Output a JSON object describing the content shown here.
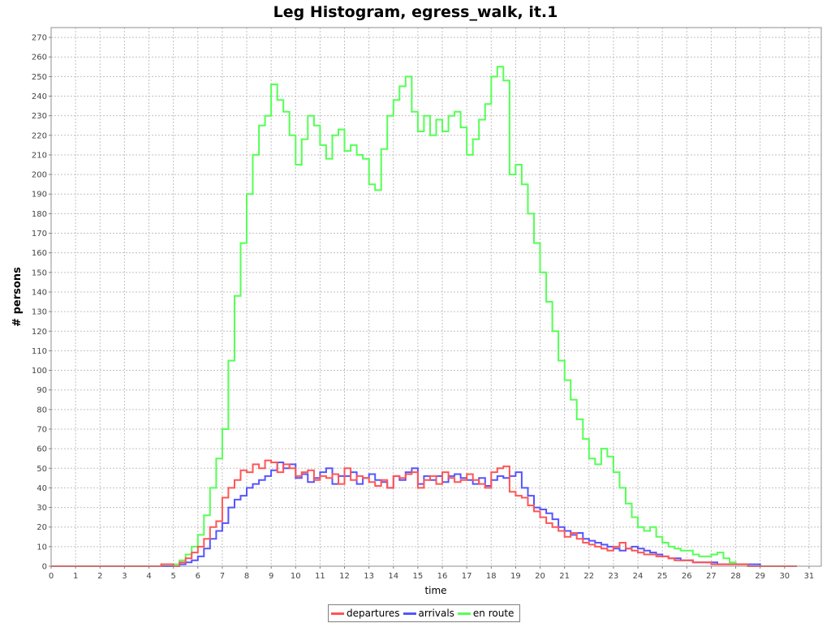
{
  "chart_data": {
    "type": "line",
    "step": true,
    "title": "Leg Histogram, egress_walk, it.1",
    "xlabel": "time",
    "ylabel": "# persons",
    "xlim": [
      0,
      31.5
    ],
    "ylim": [
      0,
      275
    ],
    "xticks": [
      0,
      1,
      2,
      3,
      4,
      5,
      6,
      7,
      8,
      9,
      10,
      11,
      12,
      13,
      14,
      15,
      16,
      17,
      18,
      19,
      20,
      21,
      22,
      23,
      24,
      25,
      26,
      27,
      28,
      29,
      30,
      31
    ],
    "yticks": [
      0,
      10,
      20,
      30,
      40,
      50,
      60,
      70,
      80,
      90,
      100,
      110,
      120,
      130,
      140,
      150,
      160,
      170,
      180,
      190,
      200,
      210,
      220,
      230,
      240,
      250,
      260,
      270
    ],
    "grid": true,
    "legend_position": "bottom",
    "series": [
      {
        "name": "departures",
        "color": "#ff5555",
        "x": [
          0,
          4.5,
          5,
          5.25,
          5.5,
          5.75,
          6,
          6.25,
          6.5,
          6.75,
          7,
          7.25,
          7.5,
          7.75,
          8,
          8.25,
          8.5,
          8.75,
          9,
          9.25,
          9.5,
          9.75,
          10,
          10.25,
          10.5,
          10.75,
          11,
          11.25,
          11.5,
          11.75,
          12,
          12.25,
          12.5,
          12.75,
          13,
          13.25,
          13.5,
          13.75,
          14,
          14.25,
          14.5,
          14.75,
          15,
          15.25,
          15.5,
          15.75,
          16,
          16.25,
          16.5,
          16.75,
          17,
          17.25,
          17.5,
          17.75,
          18,
          18.25,
          18.5,
          18.75,
          19,
          19.25,
          19.5,
          19.75,
          20,
          20.25,
          20.5,
          20.75,
          21,
          21.25,
          21.5,
          21.75,
          22,
          22.25,
          22.5,
          22.75,
          23,
          23.25,
          23.5,
          23.75,
          24,
          24.25,
          24.5,
          24.75,
          25,
          25.25,
          25.5,
          25.75,
          26,
          26.25,
          26.5,
          26.75,
          27,
          27.25,
          27.5,
          27.75,
          28,
          28.25,
          28.5,
          28.75,
          29,
          30.25
        ],
        "values": [
          0,
          1,
          0,
          2,
          4,
          7,
          10,
          14,
          20,
          23,
          35,
          40,
          44,
          49,
          48,
          52,
          50,
          54,
          53,
          48,
          52,
          50,
          46,
          48,
          49,
          44,
          46,
          45,
          47,
          42,
          50,
          44,
          46,
          45,
          43,
          41,
          44,
          40,
          46,
          45,
          47,
          48,
          40,
          44,
          46,
          42,
          48,
          45,
          43,
          44,
          47,
          44,
          42,
          40,
          48,
          50,
          51,
          38,
          36,
          35,
          31,
          28,
          25,
          22,
          20,
          18,
          15,
          17,
          14,
          12,
          11,
          10,
          9,
          8,
          10,
          12,
          9,
          8,
          7,
          6,
          6,
          5,
          5,
          4,
          3,
          3,
          3,
          2,
          2,
          2,
          1,
          1,
          1,
          1,
          1,
          1,
          0,
          0,
          0,
          0
        ]
      },
      {
        "name": "arrivals",
        "color": "#5555ff",
        "x": [
          0,
          4.5,
          5,
          5.25,
          5.5,
          5.75,
          6,
          6.25,
          6.5,
          6.75,
          7,
          7.25,
          7.5,
          7.75,
          8,
          8.25,
          8.5,
          8.75,
          9,
          9.25,
          9.5,
          9.75,
          10,
          10.25,
          10.5,
          10.75,
          11,
          11.25,
          11.5,
          11.75,
          12,
          12.25,
          12.5,
          12.75,
          13,
          13.25,
          13.5,
          13.75,
          14,
          14.25,
          14.5,
          14.75,
          15,
          15.25,
          15.5,
          15.75,
          16,
          16.25,
          16.5,
          16.75,
          17,
          17.25,
          17.5,
          17.75,
          18,
          18.25,
          18.5,
          18.75,
          19,
          19.25,
          19.5,
          19.75,
          20,
          20.25,
          20.5,
          20.75,
          21,
          21.25,
          21.5,
          21.75,
          22,
          22.25,
          22.5,
          22.75,
          23,
          23.25,
          23.5,
          23.75,
          24,
          24.25,
          24.5,
          24.75,
          25,
          25.25,
          25.5,
          25.75,
          26,
          26.25,
          26.5,
          26.75,
          27,
          27.25,
          27.5,
          27.75,
          28,
          28.25,
          28.5,
          28.75,
          29,
          30.25
        ],
        "values": [
          0,
          0,
          0,
          1,
          2,
          3,
          5,
          9,
          14,
          18,
          22,
          30,
          34,
          36,
          40,
          42,
          44,
          46,
          49,
          53,
          50,
          52,
          45,
          47,
          43,
          45,
          48,
          50,
          42,
          46,
          46,
          48,
          42,
          45,
          47,
          44,
          43,
          40,
          46,
          44,
          48,
          50,
          42,
          46,
          44,
          46,
          43,
          46,
          47,
          45,
          44,
          42,
          45,
          41,
          44,
          46,
          45,
          46,
          48,
          40,
          36,
          30,
          29,
          27,
          24,
          20,
          18,
          16,
          17,
          14,
          13,
          12,
          11,
          10,
          9,
          8,
          9,
          10,
          9,
          8,
          7,
          6,
          5,
          4,
          4,
          3,
          3,
          2,
          2,
          2,
          2,
          1,
          1,
          1,
          1,
          1,
          1,
          1,
          0,
          0
        ]
      },
      {
        "name": "en route",
        "color": "#55ff55",
        "x": [
          0,
          4.5,
          5,
          5.25,
          5.5,
          5.75,
          6,
          6.25,
          6.5,
          6.75,
          7,
          7.25,
          7.5,
          7.75,
          8,
          8.25,
          8.5,
          8.75,
          9,
          9.25,
          9.5,
          9.75,
          10,
          10.25,
          10.5,
          10.75,
          11,
          11.25,
          11.5,
          11.75,
          12,
          12.25,
          12.5,
          12.75,
          13,
          13.25,
          13.5,
          13.75,
          14,
          14.25,
          14.5,
          14.75,
          15,
          15.25,
          15.5,
          15.75,
          16,
          16.25,
          16.5,
          16.75,
          17,
          17.25,
          17.5,
          17.75,
          18,
          18.25,
          18.5,
          18.75,
          19,
          19.25,
          19.5,
          19.75,
          20,
          20.25,
          20.5,
          20.75,
          21,
          21.25,
          21.5,
          21.75,
          22,
          22.25,
          22.5,
          22.75,
          23,
          23.25,
          23.5,
          23.75,
          24,
          24.25,
          24.5,
          24.75,
          25,
          25.25,
          25.5,
          25.75,
          26,
          26.25,
          26.5,
          26.75,
          27,
          27.25,
          27.5,
          27.75,
          28,
          28.25,
          28.5,
          28.75,
          29,
          30.25
        ],
        "values": [
          0,
          1,
          1,
          3,
          6,
          10,
          16,
          26,
          40,
          55,
          70,
          105,
          138,
          165,
          190,
          210,
          225,
          230,
          246,
          238,
          232,
          220,
          205,
          218,
          230,
          225,
          215,
          208,
          220,
          223,
          212,
          215,
          210,
          208,
          195,
          192,
          213,
          230,
          238,
          245,
          250,
          232,
          222,
          230,
          220,
          228,
          222,
          230,
          232,
          224,
          210,
          218,
          228,
          236,
          250,
          255,
          248,
          200,
          205,
          195,
          180,
          165,
          150,
          135,
          120,
          105,
          95,
          85,
          75,
          65,
          55,
          52,
          60,
          56,
          48,
          40,
          32,
          25,
          20,
          18,
          20,
          15,
          12,
          10,
          9,
          8,
          8,
          6,
          5,
          5,
          6,
          7,
          4,
          2,
          1,
          1,
          0,
          0,
          0,
          0
        ]
      }
    ]
  }
}
